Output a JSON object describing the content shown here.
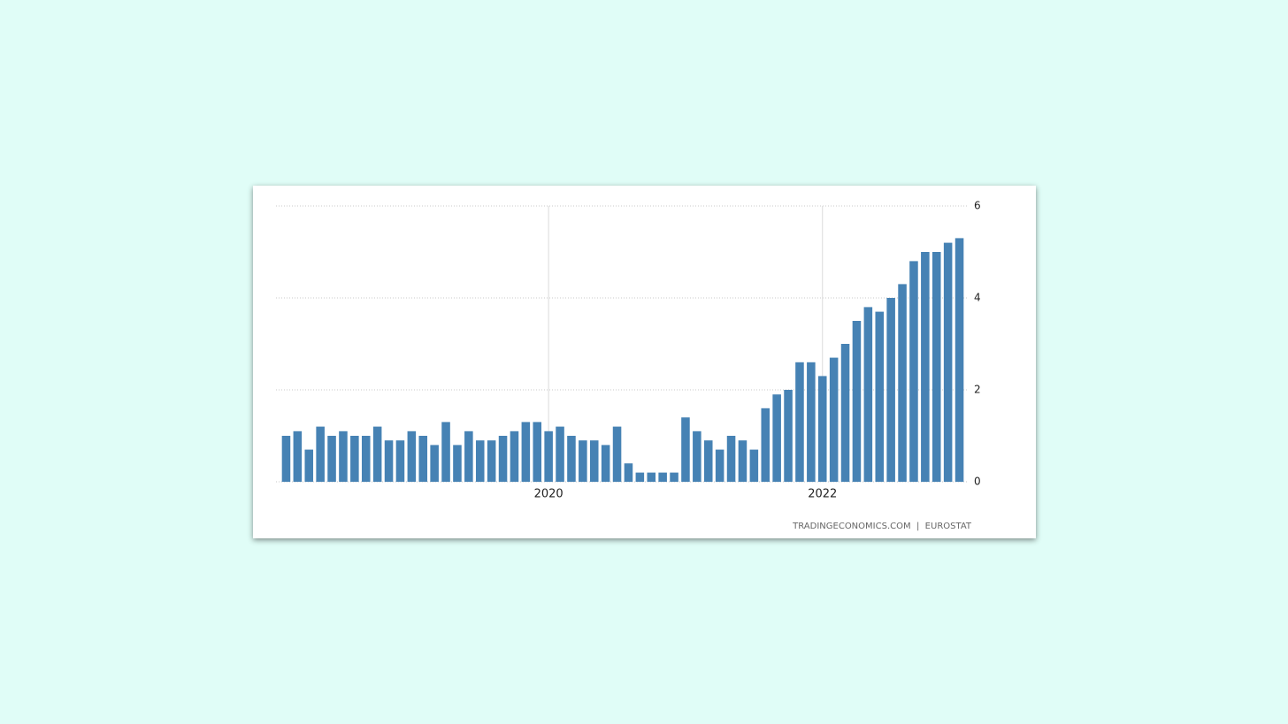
{
  "chart_data": {
    "type": "bar",
    "categories": [
      null,
      null,
      null,
      null,
      null,
      null,
      null,
      null,
      null,
      null,
      null,
      null,
      null,
      null,
      null,
      null,
      null,
      null,
      null,
      null,
      null,
      null,
      null,
      "2020",
      null,
      null,
      null,
      null,
      null,
      null,
      null,
      null,
      null,
      null,
      null,
      null,
      null,
      null,
      null,
      null,
      null,
      null,
      null,
      null,
      null,
      null,
      null,
      "2022",
      null,
      null,
      null,
      null,
      null,
      null,
      null,
      null,
      null,
      null,
      null,
      null
    ],
    "values": [
      1.0,
      1.1,
      0.7,
      1.2,
      1.0,
      1.1,
      1.0,
      1.0,
      1.2,
      0.9,
      0.9,
      1.1,
      1.0,
      0.8,
      1.3,
      0.8,
      1.1,
      0.9,
      0.9,
      1.0,
      1.1,
      1.3,
      1.3,
      1.1,
      1.2,
      1.0,
      0.9,
      0.9,
      0.8,
      1.2,
      0.4,
      0.2,
      0.2,
      0.2,
      0.2,
      1.4,
      1.1,
      0.9,
      0.7,
      1.0,
      0.9,
      0.7,
      1.6,
      1.9,
      2.0,
      2.6,
      2.6,
      2.3,
      2.7,
      3.0,
      3.5,
      3.8,
      3.7,
      4.0,
      4.3,
      4.8,
      5.0,
      5.0,
      5.2,
      5.3
    ],
    "color": "#4682b4",
    "ylim": [
      0,
      6
    ],
    "yticks": [
      0,
      2,
      4,
      6
    ],
    "grid": true,
    "source": "TRADINGECONOMICS.COM  |  EUROSTAT"
  }
}
